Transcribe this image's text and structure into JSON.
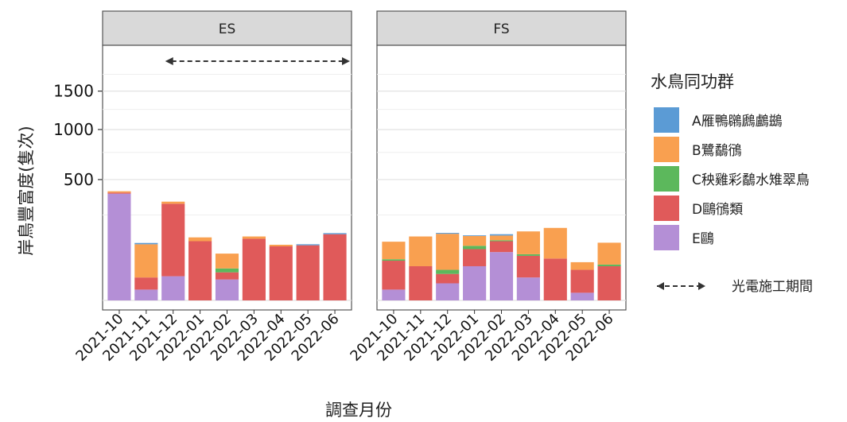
{
  "chart_data": {
    "type": "bar",
    "stacked": true,
    "facets": [
      "ES",
      "FS"
    ],
    "categories": [
      "2021-10",
      "2021-11",
      "2021-12",
      "2022-01",
      "2022-02",
      "2022-03",
      "2022-04",
      "2022-05",
      "2022-06"
    ],
    "xlabel": "調查月份",
    "ylabel": "岸鳥豐富度(隻次)",
    "y_ticks": [
      500,
      1000,
      1500
    ],
    "y_scale": "sqrt",
    "ylim": [
      0,
      1800
    ],
    "grid": true,
    "legend": {
      "title": "水鳥同功群",
      "position": "right",
      "groups": [
        {
          "name": "A雁鴨鸊鷉鸕鷀",
          "color": "#5B9BD5"
        },
        {
          "name": "B鷺鷸鴴",
          "color": "#F9A050"
        },
        {
          "name": "C秧雞彩鷸水雉翠鳥",
          "color": "#5CB85C"
        },
        {
          "name": "D鷗鴴類",
          "color": "#E05A5A"
        },
        {
          "name": "E鷗",
          "color": "#B48FD6"
        }
      ],
      "annotation_label": "光電施工期間"
    },
    "annotation": {
      "facet": "ES",
      "type": "double-arrow",
      "from": "2021-12",
      "to": "2022-06",
      "label": "光電施工期間"
    },
    "series_by_facet": {
      "ES": [
        {
          "name": "A雁鴨鸊鷉鸕鷀",
          "values": [
            0,
            5,
            0,
            0,
            0,
            0,
            0,
            4,
            5
          ]
        },
        {
          "name": "B鷺鷸鴴",
          "values": [
            10,
            90,
            14,
            16,
            40,
            10,
            6,
            0,
            0
          ]
        },
        {
          "name": "C秧雞彩鷸水雉翠鳥",
          "values": [
            0,
            0,
            0,
            0,
            8,
            0,
            0,
            0,
            0
          ]
        },
        {
          "name": "D鷗鴴類",
          "values": [
            8,
            14,
            300,
            120,
            12,
            130,
            100,
            104,
            150
          ]
        },
        {
          "name": "E鷗",
          "values": [
            390,
            4,
            20,
            0,
            15,
            0,
            0,
            0,
            0
          ]
        }
      ],
      "FS": [
        {
          "name": "A雁鴨鸊鷉鸕鷀",
          "values": [
            0,
            0,
            4,
            3,
            6,
            0,
            0,
            0,
            0
          ]
        },
        {
          "name": "B鷺鷸鴴",
          "values": [
            60,
            100,
            120,
            40,
            20,
            90,
            120,
            18,
            70
          ]
        },
        {
          "name": "C秧雞彩鷸水雉翠鳥",
          "values": [
            4,
            0,
            8,
            12,
            4,
            5,
            0,
            0,
            4
          ]
        },
        {
          "name": "D鷗鴴類",
          "values": [
            50,
            40,
            14,
            50,
            40,
            50,
            60,
            30,
            40
          ]
        },
        {
          "name": "E鷗",
          "values": [
            4,
            0,
            10,
            40,
            80,
            18,
            0,
            2,
            0
          ]
        }
      ]
    }
  }
}
